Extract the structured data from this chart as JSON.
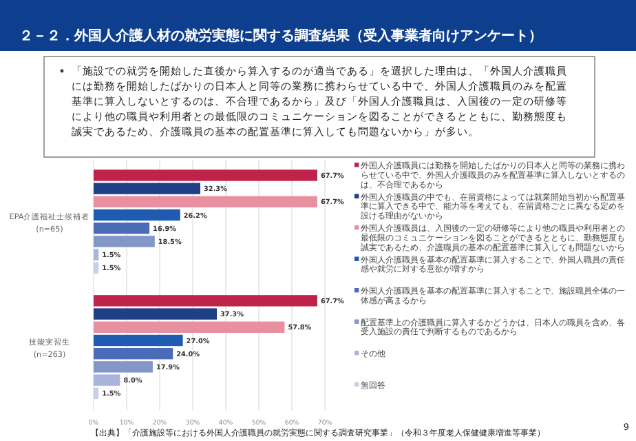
{
  "chart_data": {
    "type": "bar",
    "orientation": "horizontal",
    "title": "２－２．外国人介護人材の就労実態に関する調査結果（受入事業者向けアンケート）",
    "subtitle": "「施設での就労を開始した直後から算入するのが適当である」を選択した理由は、「外国人介護職員には勤務を開始したばかりの日本人と同等の業務に携わらせている中で、外国人介護職員のみを配置基準に算入しないとするのは、不合理であるから」及び「外国人介護職員は、入国後の一定の研修等により他の職員や利用者との最低限のコミュニケーションを図ることができるとともに、勤務態度も誠実であるため、介護職員の基本の配置基準に算入しても問題ないから」が多い。",
    "categories": [
      "EPA介護福祉士候補者\n(n=65)",
      "技能実習生\n(n=263)"
    ],
    "series": [
      {
        "name": "外国人介護職員には勤務を開始したばかりの日本人と同等の業務に携わらせている中で、外国人介護職員のみを配置基準に算入しないとするのは、不合理であるから",
        "color": "#c0234a",
        "values": [
          67.7,
          67.7
        ],
        "value_labels": [
          "67.7%",
          "67.7%"
        ]
      },
      {
        "name": "外国人介護職員の中でも、在留資格によっては就業開始当初から配置基準に算入できる中で、能力等を考えても、在留資格ごとに異なる定めを設ける理由がないから",
        "color": "#1f3f86",
        "values": [
          32.3,
          37.3
        ],
        "value_labels": [
          "32.3%",
          "37.3%"
        ]
      },
      {
        "name": "外国人介護職員は、入国後の一定の研修等により他の職員や利用者との最低限のコミュニケーションを図ることができるとともに、勤務態度も誠実であるため、介護職員の基本の配置基準に算入しても問題ないから",
        "color": "#e8909f",
        "values": [
          67.7,
          57.8
        ],
        "value_labels": [
          "67.7%",
          "57.8%"
        ]
      },
      {
        "name": "外国人介護職員を基本の配置基準に算入することで、外国人職員の責任感や就労に対する意欲が増すから",
        "color": "#1f5bb0",
        "values": [
          26.2,
          27.0
        ],
        "value_labels": [
          "26.2%",
          "27.0%"
        ]
      },
      {
        "name": "外国人介護職員を基本の配置基準に算入することで、施設職員全体の一体感が高まるから",
        "color": "#4a6cb8",
        "values": [
          16.9,
          24.0
        ],
        "value_labels": [
          "16.9%",
          "24.0%"
        ]
      },
      {
        "name": "配置基準上の介護職員に算入するかどうかは、日本人の職員を含め、各受入施設の責任で判断するものであるから",
        "color": "#8396c8",
        "values": [
          18.5,
          17.9
        ],
        "value_labels": [
          "18.5%",
          "17.9%"
        ]
      },
      {
        "name": "その他",
        "color": "#a8b4dc",
        "values": [
          1.5,
          8.0
        ],
        "value_labels": [
          "1.5%",
          "8.0%"
        ]
      },
      {
        "name": "無回答",
        "color": "#c8d0e8",
        "values": [
          1.5,
          1.5
        ],
        "value_labels": [
          "1.5%",
          "1.5%"
        ]
      }
    ],
    "xlim": [
      0,
      70
    ],
    "xticks": [
      {
        "value": 0,
        "label": "0%"
      },
      {
        "value": 10,
        "label": "10%"
      },
      {
        "value": 20,
        "label": "20%"
      },
      {
        "value": 30,
        "label": "30%"
      },
      {
        "value": 40,
        "label": "40%"
      },
      {
        "value": 50,
        "label": "50%"
      },
      {
        "value": 60,
        "label": "60%"
      },
      {
        "value": 70,
        "label": "70%"
      }
    ],
    "grid": "x",
    "legend": "right",
    "annotations": [
      "【出典】「介護施設等における外国人介護職員の就労実態に関する調査研究事業」（令和３年度老人保健健康増進等事業）",
      "9"
    ]
  }
}
